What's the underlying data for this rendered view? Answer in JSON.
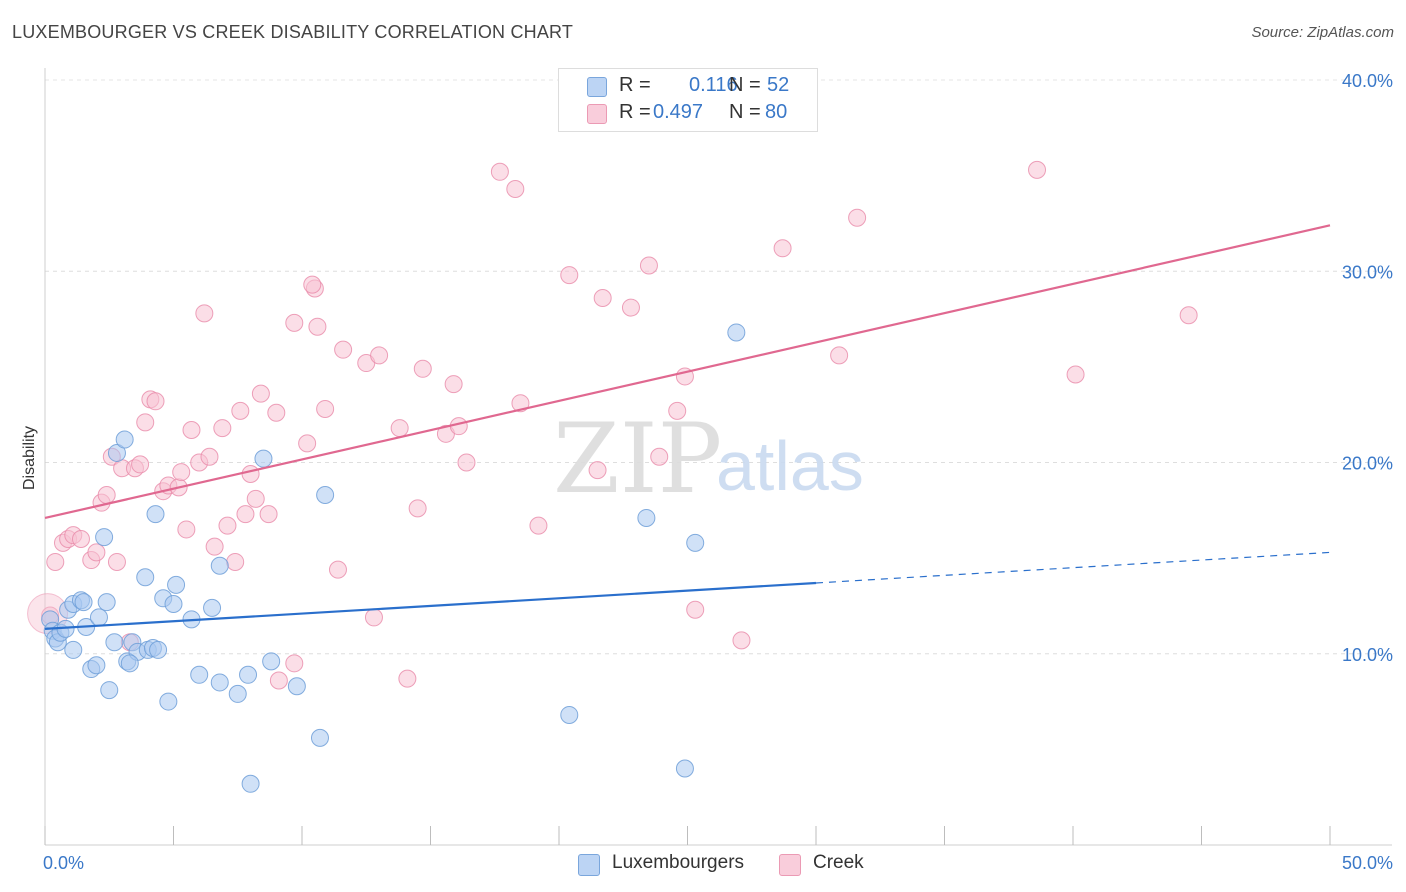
{
  "header": {
    "title": "LUXEMBOURGER VS CREEK DISABILITY CORRELATION CHART",
    "source": "Source: ZipAtlas.com"
  },
  "watermark": {
    "zip": "ZIP",
    "atlas": "atlas"
  },
  "legend": {
    "r_label": "R =",
    "n_label": "N =",
    "rows": [
      {
        "r": "0.116",
        "n": "52",
        "color": "#aac8f0"
      },
      {
        "r": "0.497",
        "n": "80",
        "color": "#f5b8cc"
      }
    ]
  },
  "bottom_legend": [
    "Luxembourgers",
    "Creek"
  ],
  "colors": {
    "blue_fill": "#aac8f0",
    "blue_stroke": "#6e9fd8",
    "blue_line": "#2a6fcc",
    "pink_fill": "#f7c3d3",
    "pink_stroke": "#e98aa9",
    "pink_line": "#e06890",
    "tick_text": "#3a78c8"
  },
  "chart_data": {
    "type": "scatter",
    "title": "LUXEMBOURGER VS CREEK DISABILITY CORRELATION CHART",
    "xlabel": "",
    "ylabel": "Disability",
    "xlim": [
      0,
      50
    ],
    "ylim": [
      0,
      40
    ],
    "x_tick_labels": [
      "0.0%",
      "50.0%"
    ],
    "y_ticks": [
      10,
      20,
      30,
      40
    ],
    "y_tick_labels": [
      "10.0%",
      "20.0%",
      "30.0%",
      "40.0%"
    ],
    "grid": true,
    "legend_position": "top-center",
    "series": [
      {
        "name": "Luxembourgers",
        "r": 0.116,
        "n": 52,
        "trend": {
          "x0": 0,
          "y0": 11.3,
          "x1": 30,
          "y1": 13.7,
          "dashed_to_x": 50,
          "dashed_to_y": 15.3
        },
        "points": [
          [
            0.2,
            11.8
          ],
          [
            0.3,
            11.2
          ],
          [
            0.4,
            10.8
          ],
          [
            0.5,
            10.6
          ],
          [
            0.6,
            11.1
          ],
          [
            0.8,
            11.3
          ],
          [
            0.9,
            12.3
          ],
          [
            1.1,
            12.6
          ],
          [
            1.1,
            10.2
          ],
          [
            1.4,
            12.8
          ],
          [
            1.6,
            11.4
          ],
          [
            1.8,
            9.2
          ],
          [
            2.0,
            9.4
          ],
          [
            2.1,
            11.9
          ],
          [
            2.3,
            16.1
          ],
          [
            2.4,
            12.7
          ],
          [
            2.5,
            8.1
          ],
          [
            2.7,
            10.6
          ],
          [
            2.8,
            20.5
          ],
          [
            3.1,
            21.2
          ],
          [
            3.2,
            9.6
          ],
          [
            3.4,
            10.6
          ],
          [
            3.6,
            10.1
          ],
          [
            3.9,
            14.0
          ],
          [
            4.0,
            10.2
          ],
          [
            4.2,
            10.3
          ],
          [
            4.3,
            17.3
          ],
          [
            4.4,
            10.2
          ],
          [
            4.6,
            12.9
          ],
          [
            4.8,
            7.5
          ],
          [
            5.0,
            12.6
          ],
          [
            5.1,
            13.6
          ],
          [
            5.7,
            11.8
          ],
          [
            6.0,
            8.9
          ],
          [
            6.5,
            12.4
          ],
          [
            6.8,
            14.6
          ],
          [
            6.8,
            8.5
          ],
          [
            7.5,
            7.9
          ],
          [
            7.9,
            8.9
          ],
          [
            8.0,
            3.2
          ],
          [
            8.5,
            20.2
          ],
          [
            8.8,
            9.6
          ],
          [
            9.8,
            8.3
          ],
          [
            10.7,
            5.6
          ],
          [
            10.9,
            18.3
          ],
          [
            20.4,
            6.8
          ],
          [
            23.4,
            17.1
          ],
          [
            24.9,
            4.0
          ],
          [
            25.3,
            15.8
          ],
          [
            26.9,
            26.8
          ],
          [
            3.3,
            9.5
          ],
          [
            1.5,
            12.7
          ]
        ]
      },
      {
        "name": "Creek",
        "r": 0.497,
        "n": 80,
        "trend": {
          "x0": 0,
          "y0": 17.1,
          "x1": 50,
          "y1": 32.4
        },
        "points": [
          [
            0.2,
            12.0
          ],
          [
            0.4,
            14.8
          ],
          [
            0.7,
            15.8
          ],
          [
            0.9,
            16.0
          ],
          [
            1.1,
            16.2
          ],
          [
            1.4,
            16.0
          ],
          [
            1.8,
            14.9
          ],
          [
            2.0,
            15.3
          ],
          [
            2.2,
            17.9
          ],
          [
            2.4,
            18.3
          ],
          [
            2.6,
            20.3
          ],
          [
            2.8,
            14.8
          ],
          [
            3.0,
            19.7
          ],
          [
            3.3,
            10.6
          ],
          [
            3.5,
            19.7
          ],
          [
            3.7,
            19.9
          ],
          [
            3.9,
            22.1
          ],
          [
            4.1,
            23.3
          ],
          [
            4.3,
            23.2
          ],
          [
            4.6,
            18.5
          ],
          [
            4.8,
            18.8
          ],
          [
            5.2,
            18.7
          ],
          [
            5.3,
            19.5
          ],
          [
            5.5,
            16.5
          ],
          [
            5.7,
            21.7
          ],
          [
            6.0,
            20.0
          ],
          [
            6.2,
            27.8
          ],
          [
            6.4,
            20.3
          ],
          [
            6.6,
            15.6
          ],
          [
            6.9,
            21.8
          ],
          [
            7.1,
            16.7
          ],
          [
            7.4,
            14.8
          ],
          [
            7.6,
            22.7
          ],
          [
            7.8,
            17.3
          ],
          [
            8.0,
            19.4
          ],
          [
            8.2,
            18.1
          ],
          [
            8.4,
            23.6
          ],
          [
            8.7,
            17.3
          ],
          [
            9.0,
            22.6
          ],
          [
            9.1,
            8.6
          ],
          [
            9.7,
            9.5
          ],
          [
            9.7,
            27.3
          ],
          [
            10.2,
            21.0
          ],
          [
            10.5,
            29.1
          ],
          [
            10.6,
            27.1
          ],
          [
            10.9,
            22.8
          ],
          [
            11.4,
            14.4
          ],
          [
            11.6,
            25.9
          ],
          [
            12.5,
            25.2
          ],
          [
            12.8,
            11.9
          ],
          [
            13.0,
            25.6
          ],
          [
            13.8,
            21.8
          ],
          [
            14.1,
            8.7
          ],
          [
            14.5,
            17.6
          ],
          [
            14.7,
            24.9
          ],
          [
            15.6,
            21.5
          ],
          [
            15.9,
            24.1
          ],
          [
            16.1,
            21.9
          ],
          [
            16.4,
            20.0
          ],
          [
            17.7,
            35.2
          ],
          [
            18.3,
            34.3
          ],
          [
            18.5,
            23.1
          ],
          [
            19.2,
            16.7
          ],
          [
            20.4,
            29.8
          ],
          [
            21.5,
            19.6
          ],
          [
            21.7,
            28.6
          ],
          [
            22.8,
            28.1
          ],
          [
            23.5,
            30.3
          ],
          [
            23.9,
            20.3
          ],
          [
            24.6,
            22.7
          ],
          [
            24.9,
            24.5
          ],
          [
            25.3,
            12.3
          ],
          [
            27.1,
            10.7
          ],
          [
            28.7,
            31.2
          ],
          [
            30.9,
            25.6
          ],
          [
            31.6,
            32.8
          ],
          [
            38.6,
            35.3
          ],
          [
            40.1,
            24.6
          ],
          [
            44.5,
            27.7
          ],
          [
            10.4,
            29.3
          ]
        ]
      }
    ]
  }
}
